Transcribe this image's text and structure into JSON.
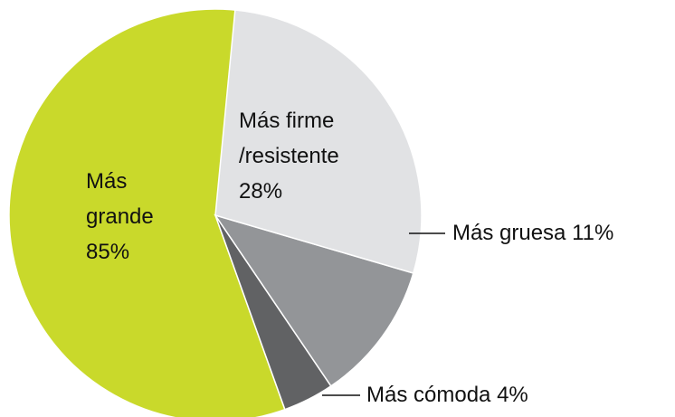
{
  "chart_data": {
    "type": "pie",
    "categories": [
      "Más firme /resistente",
      "Más gruesa",
      "Más cómoda",
      "Más grande"
    ],
    "values": [
      28,
      11,
      4,
      85
    ],
    "value_labels": [
      "28%",
      "11%",
      "4%",
      "85%"
    ],
    "colors": [
      "#e1e2e4",
      "#939598",
      "#616264",
      "#c9d92b"
    ]
  }
}
